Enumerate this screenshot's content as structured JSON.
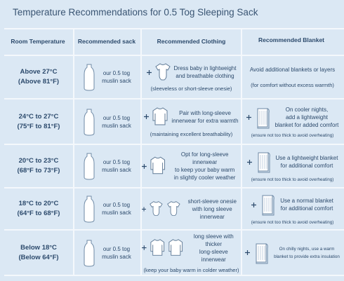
{
  "title": "Temperature Recommendations for 0.5 Tog Sleeping Sack",
  "headers": [
    "Room Temperature",
    "Recommended sack",
    "Recommended Clothing",
    "Recommended Blanket"
  ],
  "rows": [
    {
      "temp": [
        "Above 27°C",
        "(Above 81°F)"
      ],
      "sack": [
        "our 0.5 tog",
        "muslin sack"
      ],
      "clothing": [
        "Dress baby in lightweight",
        "and breathable clothing"
      ],
      "clothing_note": "(sleeveless or short-sleeve onesie)",
      "blanket": [
        "Avoid additional blankets or layers"
      ],
      "blanket_note": "(for comfort without excess warmth)"
    },
    {
      "temp": [
        "24°C to 27°C",
        "(75°F to 81°F)"
      ],
      "sack": [
        "our 0.5 tog",
        "muslin sack"
      ],
      "clothing": [
        "Pair with long-sleeve",
        "innerwear for extra warmth"
      ],
      "clothing_note": "(maintaining excellent breathability)",
      "blanket": [
        "On cooler nights,",
        "add a lightweight",
        "blanket for added comfort"
      ],
      "blanket_note": "(ensure not too thick to avoid overheating)"
    },
    {
      "temp": [
        "20°C to 23°C",
        "(68°F to 73°F)"
      ],
      "sack": [
        "our 0.5 tog",
        "muslin sack"
      ],
      "clothing": [
        "Opt for long-sleeve innerwear",
        "to keep your baby warm",
        "in slightly cooler weather"
      ],
      "blanket": [
        "Use a lightweight blanket",
        "for additional comfort"
      ],
      "blanket_note": "(ensure not too thick to avoid overheating)"
    },
    {
      "temp": [
        "18°C to 20°C",
        "(64°F to 68°F)"
      ],
      "sack": [
        "our 0.5 tog",
        "muslin sack"
      ],
      "clothing": [
        "short-sleeve onesie",
        "with long sleeve innerwear"
      ],
      "blanket": [
        "Use a normal blanket",
        "for additional comfort"
      ],
      "blanket_note": "(ensure not too thick to avoid overheating)"
    },
    {
      "temp": [
        "Below 18°C",
        "(Below 64°F)"
      ],
      "sack": [
        "our 0.5 tog",
        "muslin sack"
      ],
      "clothing": [
        "long sleeve with thicker",
        "long-sleeve innerwear"
      ],
      "clothing_note": "(keep your baby warm in colder weather)",
      "blanket": [
        "On chilly nights, use a warm",
        "blanket to provide extra insulation"
      ]
    }
  ]
}
